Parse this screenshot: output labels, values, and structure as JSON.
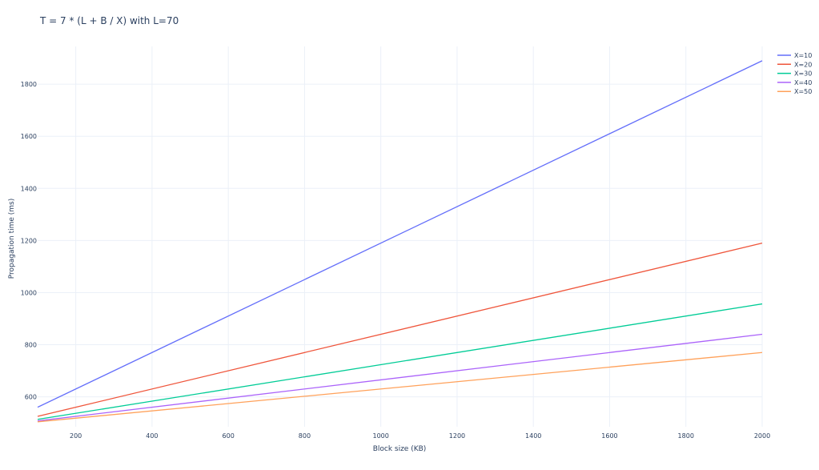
{
  "chart_data": {
    "type": "line",
    "title": "T = 7 * (L + B / X) with L=70",
    "xlabel": "Block size (KB)",
    "ylabel": "Propagation time (ms)",
    "x": [
      100,
      2000
    ],
    "xlim": [
      100,
      2000
    ],
    "ylim": [
      485,
      1945
    ],
    "xticks": [
      200,
      400,
      600,
      800,
      1000,
      1200,
      1400,
      1600,
      1800,
      2000
    ],
    "yticks": [
      600,
      800,
      1000,
      1200,
      1400,
      1600,
      1800
    ],
    "grid": true,
    "legend_position": "top-right",
    "series": [
      {
        "name": "X=10",
        "color": "#636efa",
        "values": [
          560,
          1890
        ]
      },
      {
        "name": "X=20",
        "color": "#ef553b",
        "values": [
          525,
          1190
        ]
      },
      {
        "name": "X=30",
        "color": "#00cc96",
        "values": [
          513.33,
          956.67
        ]
      },
      {
        "name": "X=40",
        "color": "#ab63fa",
        "values": [
          507.5,
          840
        ]
      },
      {
        "name": "X=50",
        "color": "#ffa15a",
        "values": [
          504,
          770
        ]
      }
    ]
  }
}
